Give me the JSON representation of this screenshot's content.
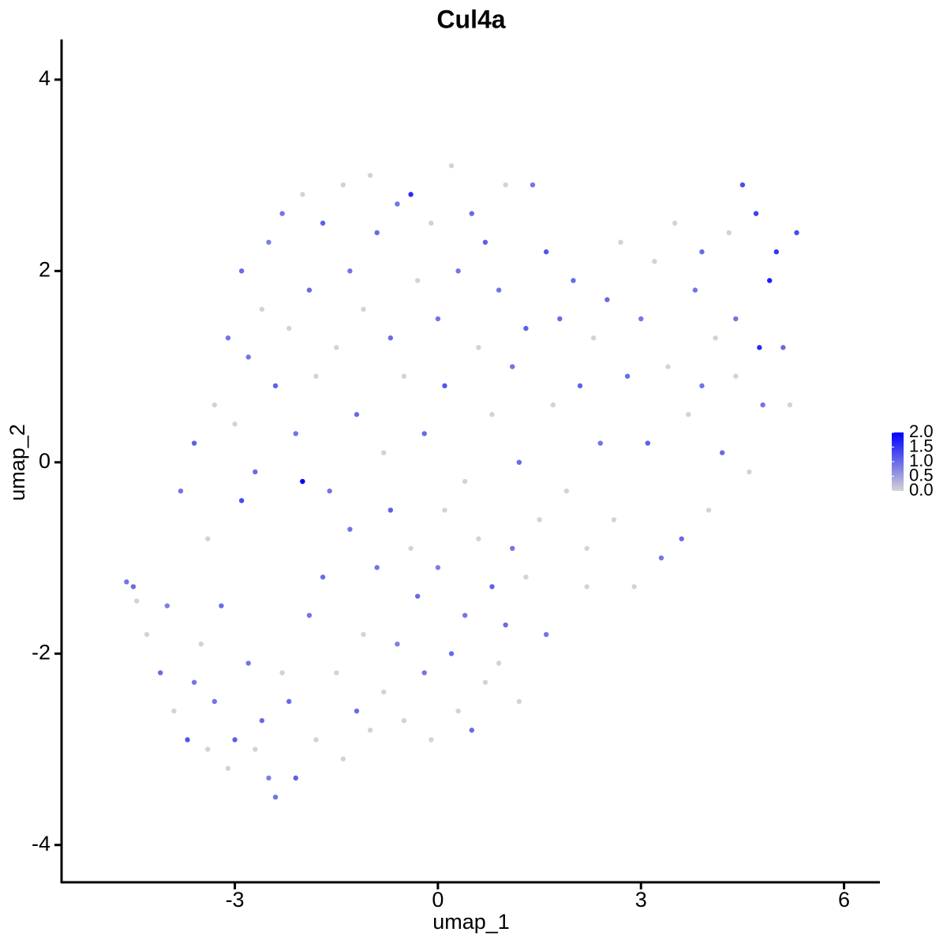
{
  "chart_data": {
    "type": "scatter",
    "title": "Cul4a",
    "x_label": "umap_1",
    "y_label": "umap_2",
    "xlim": [
      -5.56,
      6.53
    ],
    "ylim": [
      -4.39,
      4.42
    ],
    "xticks": [
      -3,
      0,
      3,
      6
    ],
    "yticks": [
      -4,
      -2,
      0,
      2,
      4
    ],
    "color_low": "#d3d3d3",
    "color_high": "#0000ff",
    "color_range": [
      0,
      2
    ],
    "colorbar_ticks": [
      {
        "value": 2,
        "label": "2.0"
      },
      {
        "value": 1.5,
        "label": "1.5"
      },
      {
        "value": 1,
        "label": "1.0"
      },
      {
        "value": 0.5,
        "label": "0.5"
      },
      {
        "value": 0,
        "label": "0.0"
      }
    ],
    "x": [
      -4.6,
      -4.5,
      -4.45,
      -4.3,
      -4.1,
      -4.0,
      -3.9,
      -3.7,
      -3.6,
      -3.5,
      -3.4,
      -3.3,
      -3.2,
      -3.1,
      -3.0,
      -2.9,
      -2.8,
      -2.7,
      -2.6,
      -2.5,
      -2.4,
      -2.3,
      -2.2,
      -2.1,
      -2.0,
      -1.9,
      -1.8,
      -1.7,
      -1.5,
      -1.4,
      -1.3,
      -1.2,
      -1.1,
      -1.0,
      -0.9,
      -0.8,
      -0.7,
      -0.6,
      -0.5,
      -0.4,
      -0.3,
      -0.2,
      -0.1,
      0.0,
      0.1,
      0.2,
      0.3,
      0.4,
      0.5,
      0.6,
      0.7,
      0.8,
      0.9,
      1.0,
      1.1,
      1.2,
      1.3,
      -3.8,
      -3.6,
      -3.4,
      -3.3,
      -3.1,
      -3.0,
      -2.9,
      -2.8,
      -2.7,
      -2.6,
      -2.5,
      -2.4,
      -2.3,
      -2.2,
      -2.1,
      -2.0,
      -1.9,
      -1.8,
      -1.7,
      -1.6,
      -1.5,
      -1.4,
      -1.3,
      -1.2,
      -1.1,
      -1.0,
      -0.9,
      -0.8,
      -0.7,
      -0.6,
      -0.5,
      -0.4,
      -0.3,
      -0.2,
      -0.1,
      0.0,
      0.1,
      0.2,
      0.3,
      0.4,
      0.5,
      0.6,
      0.7,
      0.8,
      0.9,
      1.0,
      1.1,
      1.2,
      1.3,
      1.4,
      1.5,
      1.6,
      1.7,
      1.8,
      1.9,
      2.0,
      2.1,
      2.2,
      2.3,
      2.4,
      2.5,
      2.6,
      2.7,
      2.8,
      2.9,
      3.0,
      3.1,
      3.2,
      3.3,
      3.4,
      3.5,
      3.6,
      3.7,
      3.8,
      3.9,
      4.0,
      4.1,
      4.2,
      4.3,
      4.4,
      4.5,
      4.6,
      4.7,
      4.8,
      4.9,
      5.0,
      5.1,
      5.2,
      5.3,
      4.75,
      4.4,
      3.9,
      2.2,
      1.6
    ],
    "y": [
      -1.25,
      -1.3,
      -1.45,
      -1.8,
      -2.2,
      -1.5,
      -2.6,
      -2.9,
      -2.3,
      -1.9,
      -3.0,
      -2.5,
      -1.5,
      -3.2,
      -2.9,
      -0.4,
      -2.1,
      -3.0,
      -2.7,
      -3.3,
      -3.5,
      -2.2,
      -2.5,
      -3.3,
      -0.2,
      -1.6,
      -2.9,
      -1.2,
      -2.2,
      -3.1,
      -0.7,
      -2.6,
      -1.8,
      -2.8,
      -1.1,
      -2.4,
      -0.5,
      -1.9,
      -2.7,
      -0.9,
      -1.4,
      -2.2,
      -2.9,
      -1.1,
      -0.5,
      -2.0,
      -2.6,
      -1.6,
      -2.8,
      -0.8,
      -2.3,
      -1.3,
      -2.1,
      -1.7,
      -0.9,
      -2.5,
      -1.2,
      -0.3,
      0.2,
      -0.8,
      0.6,
      1.3,
      0.4,
      2.0,
      1.1,
      -0.1,
      1.6,
      2.3,
      0.8,
      2.6,
      1.4,
      0.3,
      2.8,
      1.8,
      0.9,
      2.5,
      -0.3,
      1.2,
      2.9,
      2.0,
      0.5,
      1.6,
      3.0,
      2.4,
      0.1,
      1.3,
      2.7,
      0.9,
      2.8,
      1.9,
      0.3,
      2.5,
      1.5,
      0.8,
      3.1,
      2.0,
      -0.2,
      2.6,
      1.2,
      2.3,
      0.5,
      1.8,
      2.9,
      1.0,
      0.0,
      1.4,
      2.9,
      -0.6,
      2.2,
      0.6,
      1.5,
      -0.3,
      1.9,
      0.8,
      -0.9,
      1.3,
      0.2,
      1.7,
      -0.6,
      2.3,
      0.9,
      -1.3,
      1.5,
      0.2,
      2.1,
      -1.0,
      1.0,
      2.5,
      -0.8,
      0.5,
      1.8,
      2.2,
      -0.5,
      1.3,
      0.1,
      2.4,
      1.5,
      2.9,
      -0.1,
      2.6,
      0.6,
      1.9,
      2.2,
      1.2,
      0.6,
      2.4,
      1.2,
      0.9,
      0.8,
      -1.3,
      -1.8
    ],
    "values": [
      0.9,
      1.0,
      0,
      0,
      1.0,
      0.8,
      0,
      1.2,
      0.9,
      0,
      0,
      0.9,
      1.0,
      0,
      1.1,
      1.3,
      0.9,
      0,
      1.0,
      0.8,
      0.9,
      0,
      1.0,
      1.1,
      2.0,
      0.9,
      0,
      1.0,
      0,
      0,
      0.9,
      1.0,
      0,
      0,
      0.9,
      0,
      1.1,
      0.8,
      0,
      0,
      1.0,
      0.9,
      0,
      0.8,
      0,
      1.0,
      0,
      0.9,
      1.0,
      0,
      0,
      1.1,
      0,
      1.0,
      0.9,
      0,
      0,
      0.9,
      1.1,
      0,
      0,
      0.9,
      0,
      1.0,
      0.9,
      1.0,
      0,
      0.8,
      1.1,
      0.9,
      0,
      0.9,
      0,
      1.0,
      0,
      1.1,
      0.9,
      0,
      0,
      0.9,
      1.0,
      0,
      0,
      1.0,
      0,
      1.0,
      0.9,
      0,
      1.6,
      0,
      1.0,
      0,
      0.9,
      1.2,
      0,
      0.9,
      0,
      1.0,
      0,
      1.1,
      0,
      0.9,
      0,
      0.9,
      1.0,
      1.1,
      0.9,
      0,
      1.2,
      0,
      1.0,
      0,
      1.0,
      1.1,
      0,
      0,
      0.9,
      1.0,
      0,
      0,
      1.0,
      0,
      0.9,
      1.1,
      0,
      0.9,
      0,
      0,
      1.0,
      0,
      0.9,
      1.0,
      0,
      0,
      1.0,
      0,
      0.9,
      1.3,
      0,
      1.4,
      0.9,
      1.7,
      1.5,
      1.0,
      0,
      1.3,
      1.6,
      0,
      0.9,
      0,
      0.9
    ]
  }
}
